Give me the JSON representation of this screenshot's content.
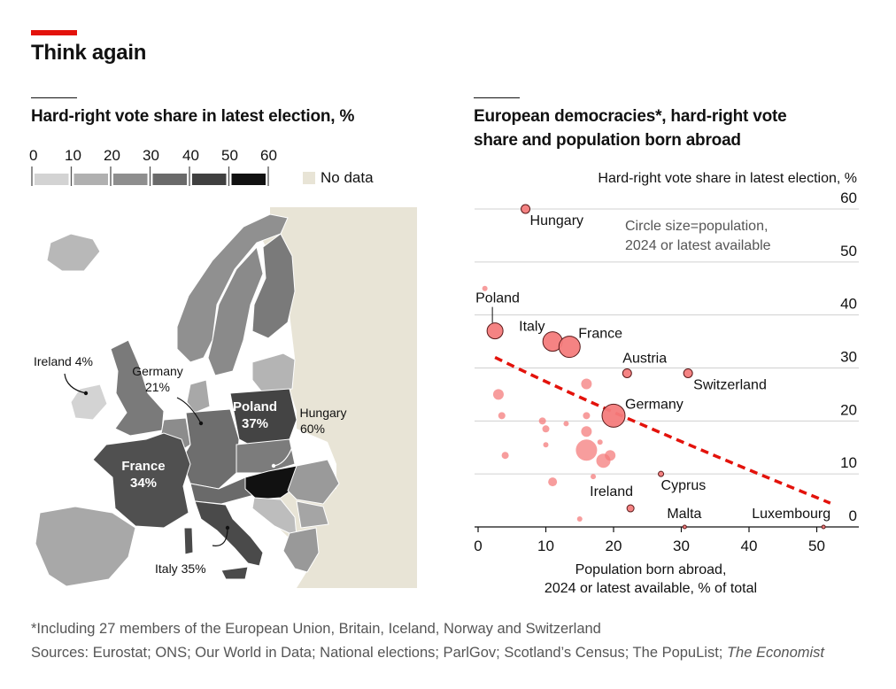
{
  "header": {
    "title": "Think again",
    "accent_color": "#e3120b"
  },
  "map_panel": {
    "title": "Hard-right vote share in latest election, %",
    "legend": {
      "ticks": [
        "0",
        "10",
        "20",
        "30",
        "40",
        "50",
        "60"
      ],
      "colors": [
        "#d3d3d3",
        "#b0b0b0",
        "#8e8e8e",
        "#6a6a6a",
        "#404040",
        "#111111"
      ],
      "no_data_label": "No data",
      "no_data_color": "#e8e4d6"
    },
    "labels": {
      "ireland": "Ireland 4%",
      "germany_name": "Germany",
      "germany_value": "21%",
      "poland_name": "Poland",
      "poland_value": "37%",
      "hungary_name": "Hungary",
      "hungary_value": "60%",
      "france_name": "France",
      "france_value": "34%",
      "italy": "Italy 35%"
    }
  },
  "scatter_panel": {
    "title_line1": "European democracies*, hard-right vote",
    "title_line2": "share and population born abroad",
    "note_line1": "Circle size=population,",
    "note_line2": "2024 or latest available"
  },
  "chart_data": {
    "type": "scatter",
    "ylabel": "Hard-right vote share in latest election, %",
    "xlabel_line1": "Population born abroad,",
    "xlabel_line2": "2024 or latest available, % of total",
    "xlim": [
      0,
      55
    ],
    "ylim": [
      0,
      60
    ],
    "x_ticks": [
      0,
      10,
      20,
      30,
      40,
      50
    ],
    "y_ticks": [
      0,
      10,
      20,
      30,
      40,
      50,
      60
    ],
    "grid": true,
    "point_color": "#f47c7c",
    "trend_color": "#e3120b",
    "trend": [
      [
        2.5,
        32
      ],
      [
        52,
        4.5
      ]
    ],
    "points": [
      {
        "label": "Hungary",
        "x": 7,
        "y": 60,
        "r": 5
      },
      {
        "label": "Poland",
        "x": 2.5,
        "y": 37,
        "r": 9
      },
      {
        "label": "Italy",
        "x": 11,
        "y": 35,
        "r": 11
      },
      {
        "label": "France",
        "x": 13.5,
        "y": 34,
        "r": 12
      },
      {
        "label": "Austria",
        "x": 22,
        "y": 29,
        "r": 5
      },
      {
        "label": "Switzerland",
        "x": 31,
        "y": 29,
        "r": 5
      },
      {
        "label": "Germany",
        "x": 20,
        "y": 21,
        "r": 13
      },
      {
        "label": "Cyprus",
        "x": 27,
        "y": 10,
        "r": 3
      },
      {
        "label": "Ireland",
        "x": 22.5,
        "y": 3.5,
        "r": 4
      },
      {
        "label": "Malta",
        "x": 30.5,
        "y": 0,
        "r": 2
      },
      {
        "label": "Luxembourg",
        "x": 51,
        "y": 0,
        "r": 2
      },
      {
        "label": "",
        "x": 3,
        "y": 25,
        "r": 6
      },
      {
        "label": "",
        "x": 3.5,
        "y": 21,
        "r": 4
      },
      {
        "label": "",
        "x": 4,
        "y": 13.5,
        "r": 4
      },
      {
        "label": "",
        "x": 16,
        "y": 27,
        "r": 6
      },
      {
        "label": "",
        "x": 9.5,
        "y": 20,
        "r": 4
      },
      {
        "label": "",
        "x": 10,
        "y": 18.5,
        "r": 4
      },
      {
        "label": "",
        "x": 13,
        "y": 19.5,
        "r": 3
      },
      {
        "label": "",
        "x": 16,
        "y": 21,
        "r": 4
      },
      {
        "label": "",
        "x": 16,
        "y": 18,
        "r": 6
      },
      {
        "label": "",
        "x": 18,
        "y": 16,
        "r": 3
      },
      {
        "label": "",
        "x": 10,
        "y": 15.5,
        "r": 3
      },
      {
        "label": "",
        "x": 16,
        "y": 14.5,
        "r": 12
      },
      {
        "label": "",
        "x": 18.5,
        "y": 12.5,
        "r": 8
      },
      {
        "label": "",
        "x": 19.5,
        "y": 13.5,
        "r": 6
      },
      {
        "label": "",
        "x": 11,
        "y": 8.5,
        "r": 5
      },
      {
        "label": "",
        "x": 17,
        "y": 9.5,
        "r": 3
      },
      {
        "label": "",
        "x": 15,
        "y": 1.5,
        "r": 3
      },
      {
        "label": "",
        "x": 1,
        "y": 45,
        "r": 3
      }
    ]
  },
  "footer": {
    "note": "*Including 27 members of the European Union, Britain, Iceland, Norway and Switzerland",
    "sources": "Sources: Eurostat; ONS; Our World in Data; National elections; ParlGov; Scotland’s Census; The PopuList;",
    "sources_italic": "The Economist"
  }
}
